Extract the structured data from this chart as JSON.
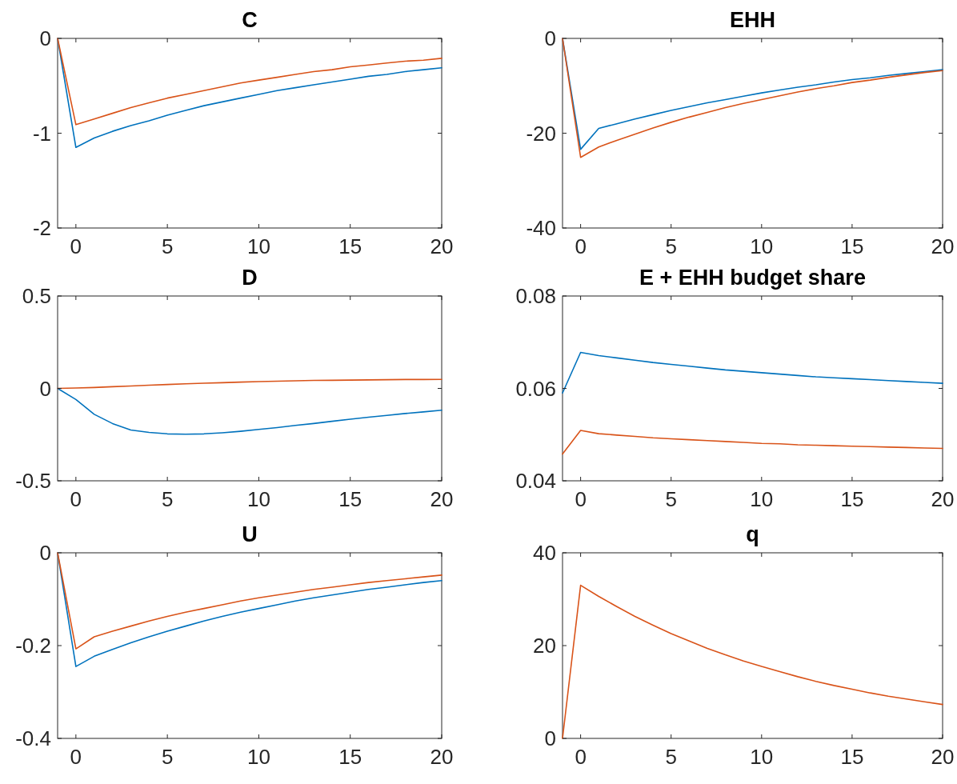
{
  "chart_data": [
    {
      "type": "line",
      "title": "C",
      "x": [
        -1,
        0,
        1,
        2,
        3,
        4,
        5,
        6,
        7,
        8,
        9,
        10,
        11,
        12,
        13,
        14,
        15,
        16,
        17,
        18,
        19,
        20
      ],
      "xlim": [
        -1,
        20
      ],
      "xticks": [
        0,
        5,
        10,
        15,
        20
      ],
      "ylim": [
        -2,
        0
      ],
      "yticks": [
        -2,
        -1,
        0
      ],
      "series": [
        {
          "color": "#0072bd",
          "values": [
            0,
            -1.15,
            -1.05,
            -0.98,
            -0.92,
            -0.87,
            -0.81,
            -0.76,
            -0.71,
            -0.67,
            -0.63,
            -0.59,
            -0.55,
            -0.52,
            -0.49,
            -0.46,
            -0.43,
            -0.4,
            -0.38,
            -0.35,
            -0.33,
            -0.31
          ]
        },
        {
          "color": "#d95319",
          "values": [
            0,
            -0.91,
            -0.85,
            -0.79,
            -0.73,
            -0.68,
            -0.63,
            -0.59,
            -0.55,
            -0.51,
            -0.47,
            -0.44,
            -0.41,
            -0.38,
            -0.35,
            -0.33,
            -0.3,
            -0.28,
            -0.26,
            -0.24,
            -0.23,
            -0.21
          ]
        }
      ]
    },
    {
      "type": "line",
      "title": "EHH",
      "x": [
        -1,
        0,
        1,
        2,
        3,
        4,
        5,
        6,
        7,
        8,
        9,
        10,
        11,
        12,
        13,
        14,
        15,
        16,
        17,
        18,
        19,
        20
      ],
      "xlim": [
        -1,
        20
      ],
      "xticks": [
        0,
        5,
        10,
        15,
        20
      ],
      "ylim": [
        -40,
        0
      ],
      "yticks": [
        -40,
        -20,
        0
      ],
      "series": [
        {
          "color": "#0072bd",
          "values": [
            0,
            -23.4,
            -19,
            -18,
            -17,
            -16.1,
            -15.2,
            -14.4,
            -13.6,
            -12.9,
            -12.2,
            -11.5,
            -10.9,
            -10.3,
            -9.8,
            -9.2,
            -8.7,
            -8.3,
            -7.8,
            -7.4,
            -7,
            -6.6
          ]
        },
        {
          "color": "#d95319",
          "values": [
            0,
            -25.1,
            -22.9,
            -21.5,
            -20.2,
            -18.9,
            -17.7,
            -16.6,
            -15.6,
            -14.6,
            -13.7,
            -12.9,
            -12.1,
            -11.3,
            -10.6,
            -10,
            -9.3,
            -8.8,
            -8.2,
            -7.7,
            -7.2,
            -6.8
          ]
        }
      ]
    },
    {
      "type": "line",
      "title": "D",
      "x": [
        -1,
        0,
        1,
        2,
        3,
        4,
        5,
        6,
        7,
        8,
        9,
        10,
        11,
        12,
        13,
        14,
        15,
        16,
        17,
        18,
        19,
        20
      ],
      "xlim": [
        -1,
        20
      ],
      "xticks": [
        0,
        5,
        10,
        15,
        20
      ],
      "ylim": [
        -0.5,
        0.5
      ],
      "yticks": [
        -0.5,
        0,
        0.5
      ],
      "series": [
        {
          "color": "#0072bd",
          "values": [
            0,
            -0.06,
            -0.14,
            -0.19,
            -0.225,
            -0.238,
            -0.246,
            -0.248,
            -0.246,
            -0.24,
            -0.232,
            -0.222,
            -0.212,
            -0.2,
            -0.19,
            -0.178,
            -0.167,
            -0.156,
            -0.146,
            -0.136,
            -0.127,
            -0.118
          ]
        },
        {
          "color": "#d95319",
          "values": [
            0,
            0.002,
            0.005,
            0.009,
            0.013,
            0.017,
            0.021,
            0.025,
            0.028,
            0.031,
            0.034,
            0.037,
            0.039,
            0.041,
            0.043,
            0.044,
            0.045,
            0.046,
            0.047,
            0.048,
            0.048,
            0.049
          ]
        }
      ]
    },
    {
      "type": "line",
      "title": "E + EHH budget share",
      "x": [
        -1,
        0,
        1,
        2,
        3,
        4,
        5,
        6,
        7,
        8,
        9,
        10,
        11,
        12,
        13,
        14,
        15,
        16,
        17,
        18,
        19,
        20
      ],
      "xlim": [
        -1,
        20
      ],
      "xticks": [
        0,
        5,
        10,
        15,
        20
      ],
      "ylim": [
        0.04,
        0.08
      ],
      "yticks": [
        0.04,
        0.06,
        0.08
      ],
      "series": [
        {
          "color": "#0072bd",
          "values": [
            0.059,
            0.0678,
            0.0671,
            0.0666,
            0.0661,
            0.0656,
            0.0652,
            0.0648,
            0.0644,
            0.064,
            0.0637,
            0.0634,
            0.0631,
            0.0628,
            0.0625,
            0.0623,
            0.0621,
            0.0619,
            0.0617,
            0.0615,
            0.0613,
            0.0611
          ]
        },
        {
          "color": "#d95319",
          "values": [
            0.0458,
            0.0509,
            0.0502,
            0.0499,
            0.0496,
            0.0493,
            0.0491,
            0.0489,
            0.0487,
            0.0485,
            0.0483,
            0.0481,
            0.048,
            0.0478,
            0.0477,
            0.0476,
            0.0475,
            0.0474,
            0.0473,
            0.0472,
            0.0471,
            0.047
          ]
        }
      ]
    },
    {
      "type": "line",
      "title": "U",
      "x": [
        -1,
        0,
        1,
        2,
        3,
        4,
        5,
        6,
        7,
        8,
        9,
        10,
        11,
        12,
        13,
        14,
        15,
        16,
        17,
        18,
        19,
        20
      ],
      "xlim": [
        -1,
        20
      ],
      "xticks": [
        0,
        5,
        10,
        15,
        20
      ],
      "ylim": [
        -0.4,
        0
      ],
      "yticks": [
        -0.4,
        -0.2,
        0
      ],
      "series": [
        {
          "color": "#0072bd",
          "values": [
            0,
            -0.245,
            -0.223,
            -0.208,
            -0.194,
            -0.181,
            -0.169,
            -0.158,
            -0.147,
            -0.137,
            -0.128,
            -0.12,
            -0.112,
            -0.104,
            -0.097,
            -0.091,
            -0.085,
            -0.079,
            -0.074,
            -0.069,
            -0.064,
            -0.06
          ]
        },
        {
          "color": "#d95319",
          "values": [
            0,
            -0.207,
            -0.181,
            -0.169,
            -0.158,
            -0.147,
            -0.137,
            -0.128,
            -0.12,
            -0.112,
            -0.104,
            -0.097,
            -0.091,
            -0.085,
            -0.079,
            -0.074,
            -0.069,
            -0.064,
            -0.06,
            -0.056,
            -0.052,
            -0.048
          ]
        }
      ]
    },
    {
      "type": "line",
      "title": "q",
      "x": [
        -1,
        0,
        1,
        2,
        3,
        4,
        5,
        6,
        7,
        8,
        9,
        10,
        11,
        12,
        13,
        14,
        15,
        16,
        17,
        18,
        19,
        20
      ],
      "xlim": [
        -1,
        20
      ],
      "xticks": [
        0,
        5,
        10,
        15,
        20
      ],
      "ylim": [
        0,
        40
      ],
      "yticks": [
        0,
        20,
        40
      ],
      "series": [
        {
          "color": "#d95319",
          "values": [
            0,
            33,
            30.6,
            28.4,
            26.3,
            24.4,
            22.6,
            21,
            19.4,
            18,
            16.7,
            15.5,
            14.4,
            13.3,
            12.3,
            11.4,
            10.6,
            9.8,
            9.1,
            8.5,
            7.9,
            7.3
          ]
        }
      ]
    }
  ]
}
